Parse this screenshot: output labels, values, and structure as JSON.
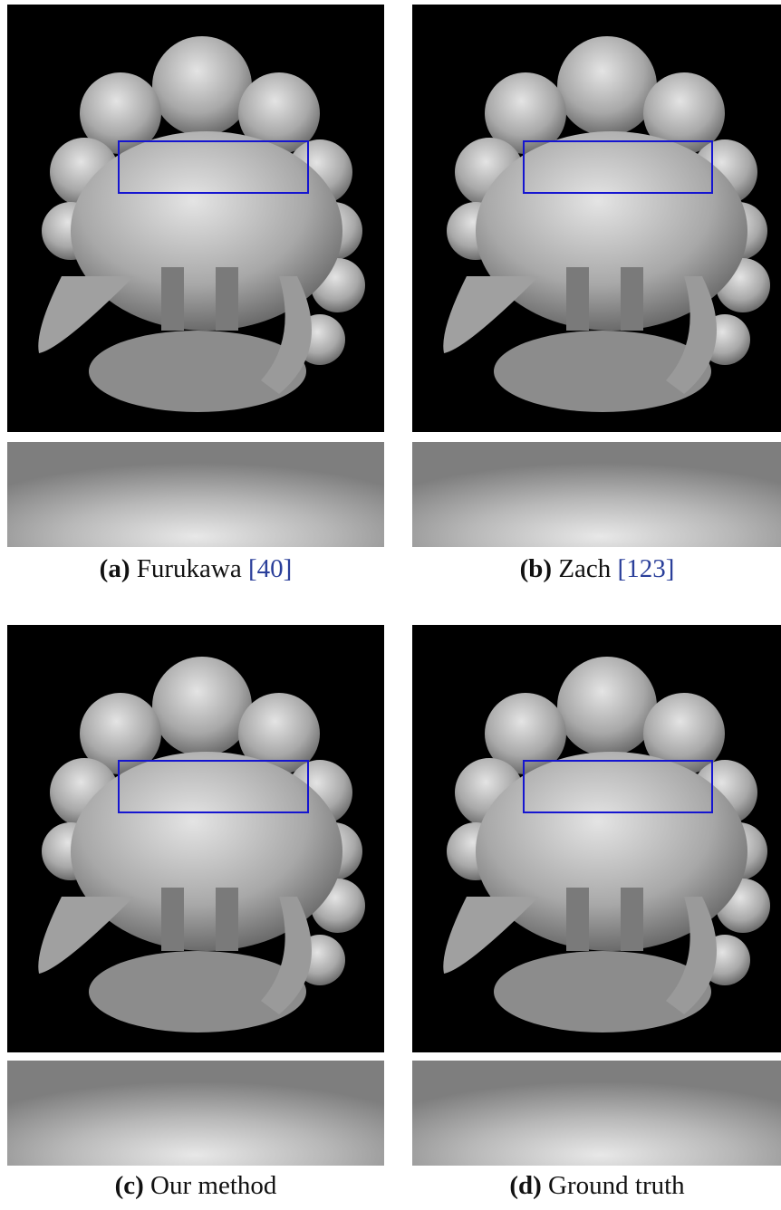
{
  "panels": [
    {
      "label": "(a)",
      "name": "Furukawa",
      "ref": "[40]"
    },
    {
      "label": "(b)",
      "name": "Zach",
      "ref": "[123]"
    },
    {
      "label": "(c)",
      "name": "Our method"
    },
    {
      "label": "(d)",
      "name": "Ground truth"
    }
  ]
}
